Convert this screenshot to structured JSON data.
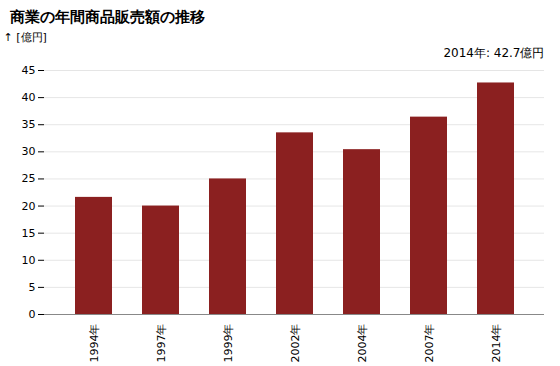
{
  "chart_data": {
    "type": "bar",
    "title": "商業の年間商品販売額の推移",
    "ylabel": "[億円]",
    "annotation": "2014年: 42.7億円",
    "categories": [
      "1994年",
      "1997年",
      "1999年",
      "2002年",
      "2004年",
      "2007年",
      "2014年"
    ],
    "values": [
      21.6,
      20.0,
      25.0,
      33.5,
      30.4,
      36.4,
      42.7
    ],
    "color": "#8B2020",
    "ylim": [
      0,
      45
    ],
    "yticks": [
      0,
      5,
      10,
      15,
      20,
      25,
      30,
      35,
      40,
      45
    ],
    "grid": true
  }
}
